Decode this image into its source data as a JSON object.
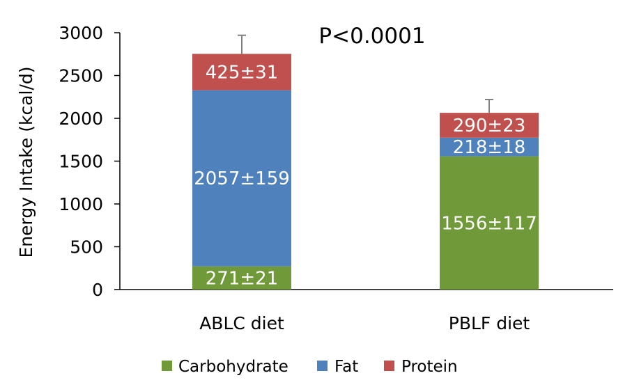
{
  "chart_data": {
    "type": "bar",
    "stacked": true,
    "categories": [
      "ABLC diet",
      "PBLF diet"
    ],
    "series": [
      {
        "name": "Carbohydrate",
        "color": "#70993a",
        "values": [
          271,
          1556
        ],
        "labels": [
          "271±21",
          "1556±117"
        ]
      },
      {
        "name": "Fat",
        "color": "#4f81bd",
        "values": [
          2057,
          218
        ],
        "labels": [
          "2057±159",
          "218±18"
        ]
      },
      {
        "name": "Protein",
        "color": "#c0504d",
        "values": [
          425,
          290
        ],
        "labels": [
          "425±31",
          "290±23"
        ]
      }
    ],
    "error_bar_upper": [
      2970,
      2220
    ],
    "ylabel": "Energy Intake (kcal/d)",
    "xlabel": "",
    "ylim": [
      0,
      3000
    ],
    "yticks": [
      0,
      500,
      1000,
      1500,
      2000,
      2500,
      3000
    ],
    "grid": false,
    "legend_position": "bottom",
    "annotation": "P<0.0001"
  }
}
